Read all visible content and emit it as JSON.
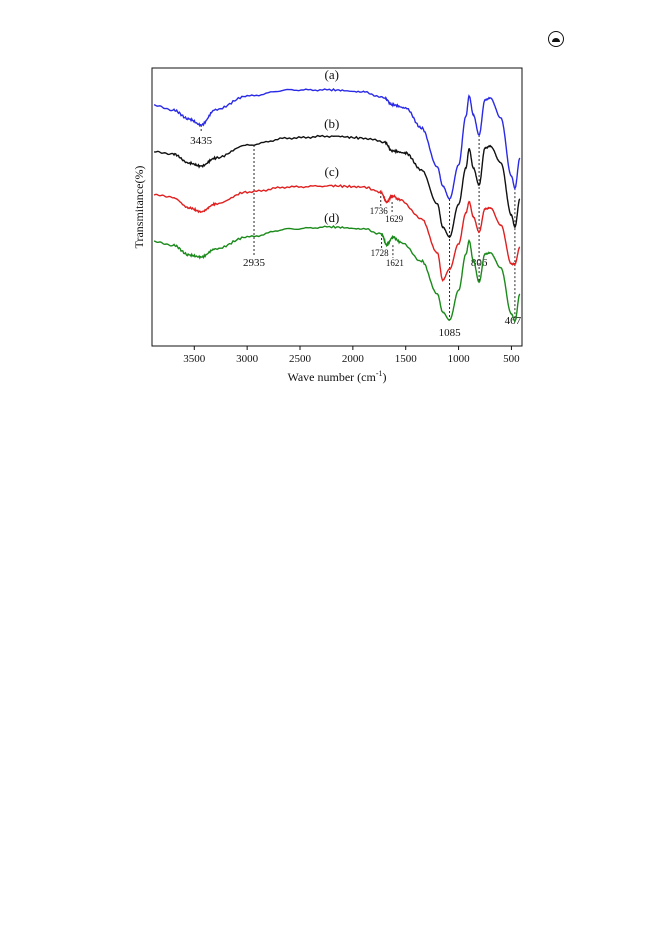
{
  "page": {
    "corner_icon": "eye-seal-icon"
  },
  "chart_data": {
    "type": "line",
    "xlabel": "Wave number (cm",
    "xlabel_sup": "-1",
    "xlabel_close": ")",
    "ylabel": "Transmitance(%)",
    "xlim": [
      3900,
      400
    ],
    "x_reversed": true,
    "ylim": [
      0,
      1
    ],
    "xticks": [
      3500,
      3000,
      2500,
      2000,
      1500,
      1000,
      500
    ],
    "yticks_shown": false,
    "grid": false,
    "series": [
      {
        "label": "(a)",
        "color": "#2a2ae6",
        "x": [
          3880,
          3700,
          3550,
          3435,
          3300,
          3000,
          2600,
          2200,
          1900,
          1700,
          1629,
          1500,
          1350,
          1200,
          1150,
          1085,
          1000,
          930,
          900,
          860,
          806,
          750,
          700,
          600,
          500,
          467,
          420
        ],
        "y": [
          0.864,
          0.849,
          0.816,
          0.795,
          0.85,
          0.899,
          0.921,
          0.921,
          0.914,
          0.892,
          0.868,
          0.856,
          0.784,
          0.644,
          0.576,
          0.529,
          0.651,
          0.827,
          0.899,
          0.831,
          0.759,
          0.885,
          0.892,
          0.82,
          0.611,
          0.568,
          0.676
        ]
      },
      {
        "label": "(b)",
        "color": "#111111",
        "x": [
          3880,
          3700,
          3550,
          3435,
          3300,
          3000,
          2600,
          2200,
          1900,
          1700,
          1629,
          1500,
          1350,
          1200,
          1150,
          1085,
          1000,
          930,
          900,
          860,
          806,
          750,
          700,
          600,
          500,
          467,
          420
        ],
        "y": [
          0.701,
          0.691,
          0.658,
          0.647,
          0.676,
          0.723,
          0.748,
          0.755,
          0.748,
          0.734,
          0.702,
          0.694,
          0.633,
          0.511,
          0.428,
          0.392,
          0.51,
          0.641,
          0.709,
          0.64,
          0.579,
          0.712,
          0.719,
          0.659,
          0.47,
          0.428,
          0.529
        ]
      },
      {
        "label": "(c)",
        "color": "#e02020",
        "x": [
          3880,
          3700,
          3550,
          3435,
          3300,
          3000,
          2600,
          2200,
          1900,
          1736,
          1680,
          1629,
          1550,
          1350,
          1200,
          1150,
          1085,
          1000,
          930,
          900,
          860,
          806,
          750,
          700,
          600,
          500,
          467,
          420
        ],
        "y": [
          0.544,
          0.533,
          0.497,
          0.483,
          0.511,
          0.554,
          0.572,
          0.576,
          0.572,
          0.554,
          0.518,
          0.54,
          0.525,
          0.457,
          0.335,
          0.237,
          0.277,
          0.367,
          0.479,
          0.518,
          0.464,
          0.41,
          0.493,
          0.497,
          0.435,
          0.295,
          0.295,
          0.356
        ]
      },
      {
        "label": "(d)",
        "color": "#1a8a1a",
        "x": [
          3880,
          3700,
          3550,
          3435,
          3300,
          3000,
          2600,
          2200,
          1900,
          1728,
          1680,
          1621,
          1550,
          1350,
          1200,
          1150,
          1085,
          1000,
          930,
          900,
          860,
          806,
          750,
          700,
          600,
          500,
          467,
          420
        ],
        "y": [
          0.374,
          0.363,
          0.327,
          0.32,
          0.349,
          0.392,
          0.421,
          0.428,
          0.421,
          0.403,
          0.363,
          0.392,
          0.374,
          0.306,
          0.187,
          0.122,
          0.093,
          0.2,
          0.331,
          0.378,
          0.306,
          0.23,
          0.331,
          0.335,
          0.281,
          0.115,
          0.09,
          0.187
        ]
      }
    ],
    "annotations": [
      {
        "text": "3435",
        "x": 3435,
        "y_top": 0.795,
        "y_bottom": 0.766,
        "label_y": 0.727,
        "size": "big",
        "label_dx": 0
      },
      {
        "text": "2935",
        "x": 2935,
        "y_top": 0.723,
        "y_bottom": 0.327,
        "label_y": 0.288,
        "size": "big",
        "label_dx": 0
      },
      {
        "text": "1736",
        "x": 1736,
        "y_top": 0.554,
        "y_bottom": 0.504,
        "label_y": 0.475,
        "size": "small",
        "label_dx": -2
      },
      {
        "text": "1629",
        "x": 1629,
        "y_top": 0.518,
        "y_bottom": 0.475,
        "label_y": 0.446,
        "size": "small",
        "label_dx": 2
      },
      {
        "text": "1728",
        "x": 1728,
        "y_top": 0.403,
        "y_bottom": 0.353,
        "label_y": 0.324,
        "size": "small",
        "label_dx": -2
      },
      {
        "text": "1621",
        "x": 1621,
        "y_top": 0.363,
        "y_bottom": 0.317,
        "label_y": 0.288,
        "size": "small",
        "label_dx": 2
      },
      {
        "text": "1085",
        "x": 1085,
        "y_top": 0.529,
        "y_bottom": 0.093,
        "label_y": 0.036,
        "size": "big",
        "label_dx": 0
      },
      {
        "text": "806",
        "x": 806,
        "y_top": 0.759,
        "y_bottom": 0.23,
        "label_y": 0.288,
        "size": "big",
        "label_dx": 0
      },
      {
        "text": "467",
        "x": 467,
        "y_top": 0.568,
        "y_bottom": 0.09,
        "label_y": 0.079,
        "size": "big",
        "label_dx": -2
      }
    ],
    "series_labels": [
      {
        "text": "(a)",
        "x": 2200,
        "y": 0.96
      },
      {
        "text": "(b)",
        "x": 2200,
        "y": 0.784
      },
      {
        "text": "(c)",
        "x": 2200,
        "y": 0.612
      },
      {
        "text": "(d)",
        "x": 2200,
        "y": 0.446
      }
    ]
  }
}
